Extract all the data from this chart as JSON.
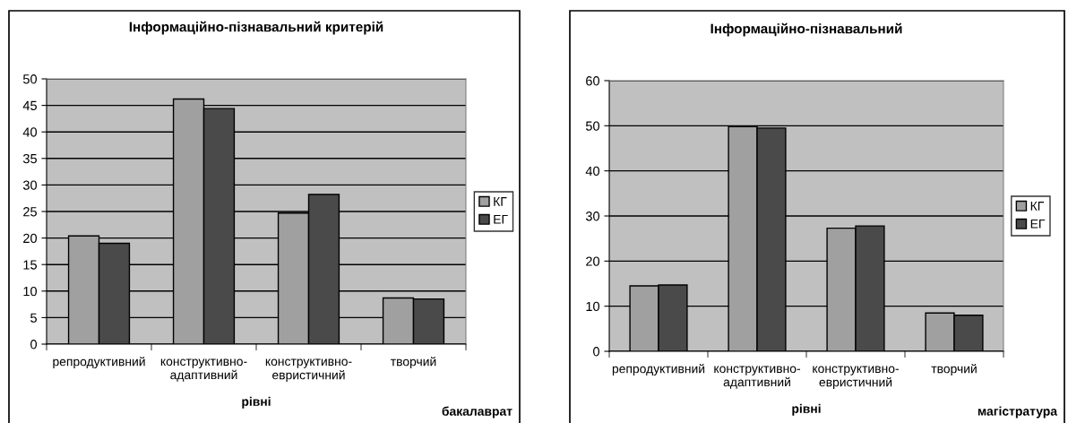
{
  "chart_data": [
    {
      "type": "bar",
      "title": "Інформаційно-пізнавальний критерій",
      "xlabel": "рівні",
      "annotations": [
        "бакалаврат"
      ],
      "categories": [
        "репродуктивний",
        "конструктивно-\nадаптивний",
        "конструктивно-\nевристичний",
        "творчий"
      ],
      "series": [
        {
          "name": "КГ",
          "color": "#a0a0a0",
          "values": [
            20.4,
            46.2,
            24.7,
            8.7
          ]
        },
        {
          "name": "ЕГ",
          "color": "#4a4a4a",
          "values": [
            19.0,
            44.4,
            28.2,
            8.5
          ]
        }
      ],
      "ylim": [
        0,
        50
      ],
      "yticks": [
        0,
        5,
        10,
        15,
        20,
        25,
        30,
        35,
        40,
        45,
        50
      ],
      "grid": "y",
      "legend": "right"
    },
    {
      "type": "bar",
      "title": "Інформаційно-пізнавальний",
      "xlabel": "рівні",
      "annotations": [
        "магістратура"
      ],
      "categories": [
        "репродуктивний",
        "конструктивно-\nадаптивний",
        "конструктивно-\nевристичний",
        "творчий"
      ],
      "series": [
        {
          "name": "КГ",
          "color": "#a0a0a0",
          "values": [
            14.5,
            49.8,
            27.3,
            8.5
          ]
        },
        {
          "name": "ЕГ",
          "color": "#4a4a4a",
          "values": [
            14.7,
            49.5,
            27.8,
            8.0
          ]
        }
      ],
      "ylim": [
        0,
        60
      ],
      "yticks": [
        0,
        10,
        20,
        30,
        40,
        50,
        60
      ],
      "grid": "y",
      "legend": "right"
    }
  ]
}
